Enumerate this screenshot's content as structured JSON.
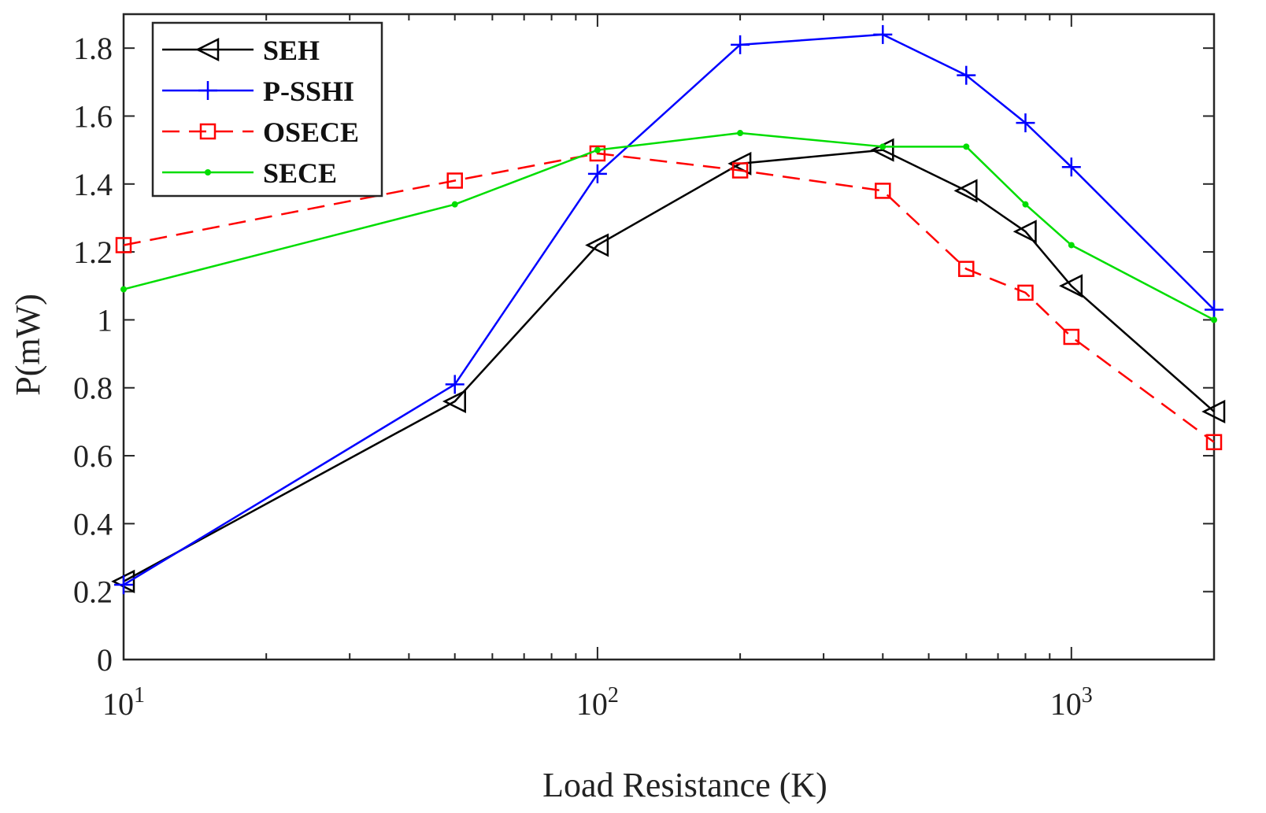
{
  "chart_data": {
    "type": "line",
    "xscale": "log",
    "xlim": [
      10,
      2000
    ],
    "ylim": [
      0,
      1.9
    ],
    "xlabel": "Load Resistance (K)",
    "ylabel": "P(mW)",
    "grid": false,
    "legend_position": "top-left",
    "yticks": [
      {
        "v": 0,
        "label": "0"
      },
      {
        "v": 0.2,
        "label": "0.2"
      },
      {
        "v": 0.4,
        "label": "0.4"
      },
      {
        "v": 0.6,
        "label": "0.6"
      },
      {
        "v": 0.8,
        "label": "0.8"
      },
      {
        "v": 1.0,
        "label": "1"
      },
      {
        "v": 1.2,
        "label": "1.2"
      },
      {
        "v": 1.4,
        "label": "1.4"
      },
      {
        "v": 1.6,
        "label": "1.6"
      },
      {
        "v": 1.8,
        "label": "1.8"
      }
    ],
    "xticks_major": [
      {
        "v": 10,
        "base": "10",
        "exp": "1"
      },
      {
        "v": 100,
        "base": "10",
        "exp": "2"
      },
      {
        "v": 1000,
        "base": "10",
        "exp": "3"
      }
    ],
    "xticks_minor": [
      20,
      30,
      40,
      50,
      60,
      70,
      80,
      90,
      200,
      300,
      400,
      500,
      600,
      700,
      800,
      900,
      2000
    ],
    "x": [
      10,
      50,
      100,
      200,
      400,
      600,
      800,
      1000,
      2000
    ],
    "series": [
      {
        "name": "SEH",
        "color": "#000000",
        "dash": "solid",
        "marker": "triangle-left",
        "values": [
          0.23,
          0.76,
          1.22,
          1.46,
          1.5,
          1.38,
          1.26,
          1.1,
          0.73
        ]
      },
      {
        "name": "P-SSHI",
        "color": "#0000ff",
        "dash": "solid",
        "marker": "plus",
        "values": [
          0.22,
          0.81,
          1.43,
          1.81,
          1.84,
          1.72,
          1.58,
          1.45,
          1.03
        ]
      },
      {
        "name": "OSECE",
        "color": "#ff0000",
        "dash": "dashed",
        "marker": "square",
        "values": [
          1.22,
          1.41,
          1.49,
          1.44,
          1.38,
          1.15,
          1.08,
          0.95,
          0.64
        ]
      },
      {
        "name": "SECE",
        "color": "#00dd00",
        "dash": "solid",
        "marker": "dot",
        "values": [
          1.09,
          1.34,
          1.5,
          1.55,
          1.51,
          1.51,
          1.34,
          1.22,
          1.0
        ]
      }
    ]
  }
}
